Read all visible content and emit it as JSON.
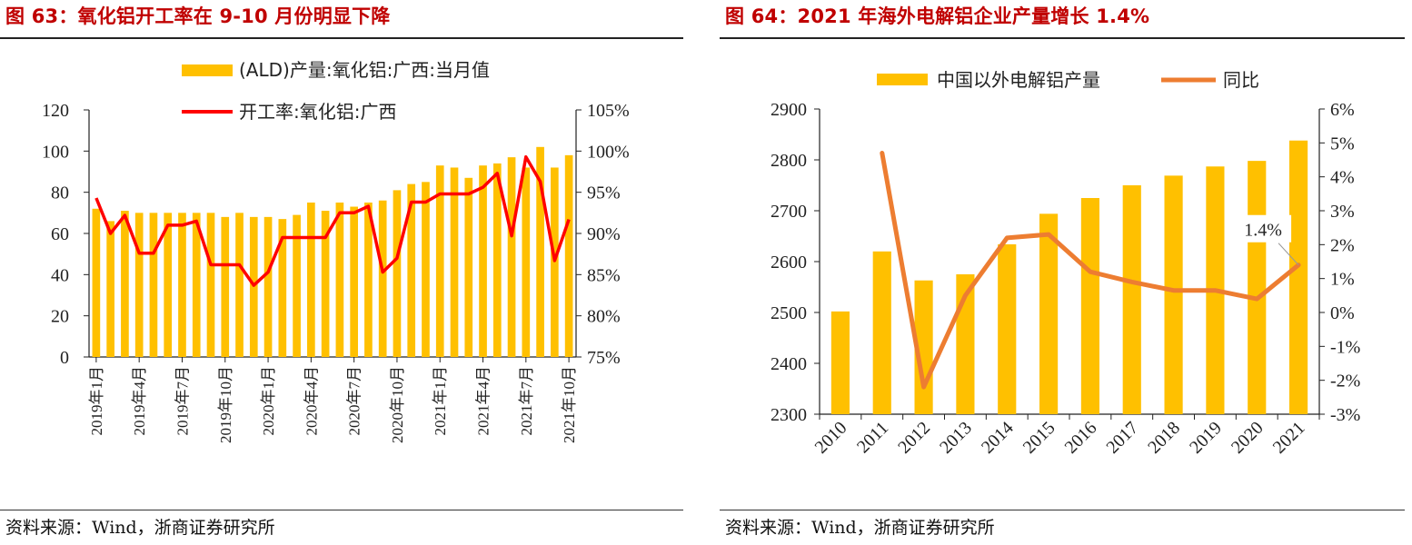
{
  "left": {
    "title": "图 63：氧化铝开工率在 9-10 月份明显下降",
    "source": "资料来源：Wind，浙商证券研究所",
    "chart_data": {
      "type": "bar+line",
      "categories": [
        "2019年1月",
        "2019年2月",
        "2019年3月",
        "2019年4月",
        "2019年5月",
        "2019年6月",
        "2019年7月",
        "2019年8月",
        "2019年9月",
        "2019年10月",
        "2019年11月",
        "2019年12月",
        "2020年1月",
        "2020年2月",
        "2020年3月",
        "2020年4月",
        "2020年5月",
        "2020年6月",
        "2020年7月",
        "2020年8月",
        "2020年9月",
        "2020年10月",
        "2020年11月",
        "2020年12月",
        "2021年1月",
        "2021年2月",
        "2021年3月",
        "2021年4月",
        "2021年5月",
        "2021年6月",
        "2021年7月",
        "2021年8月",
        "2021年9月",
        "2021年10月"
      ],
      "tick_labels": [
        "2019年1月",
        "2019年4月",
        "2019年7月",
        "2019年10月",
        "2020年1月",
        "2020年4月",
        "2020年7月",
        "2020年10月",
        "2021年1月",
        "2021年4月",
        "2021年7月",
        "2021年10月"
      ],
      "series": [
        {
          "name": "(ALD)产量:氧化铝:广西:当月值",
          "kind": "bar",
          "axis": "left",
          "color": "#ffc000",
          "values": [
            72,
            66,
            71,
            70,
            70,
            70,
            70,
            70,
            70,
            68,
            70,
            68,
            68,
            67,
            69,
            75,
            71,
            75,
            73,
            75,
            76,
            81,
            84,
            85,
            93,
            92,
            87,
            93,
            94,
            97,
            92,
            102,
            92,
            98
          ]
        },
        {
          "name": "开工率:氧化铝:广西",
          "kind": "line",
          "axis": "right",
          "color": "#ff0000",
          "values": [
            94.3,
            90.0,
            92.2,
            87.6,
            87.6,
            91.0,
            91.0,
            91.5,
            86.2,
            86.2,
            86.2,
            83.7,
            85.3,
            89.5,
            89.5,
            89.5,
            89.5,
            92.5,
            92.5,
            93.3,
            85.3,
            87.0,
            93.8,
            93.8,
            94.8,
            94.8,
            94.8,
            95.6,
            97.3,
            89.7,
            99.3,
            96.3,
            86.7,
            91.7
          ]
        }
      ],
      "y_left": {
        "min": 0,
        "max": 120,
        "ticks": [
          "0",
          "20",
          "40",
          "60",
          "80",
          "100",
          "120"
        ]
      },
      "y_right": {
        "min": 75,
        "max": 105,
        "ticks": [
          "75%",
          "80%",
          "85%",
          "90%",
          "95%",
          "100%",
          "105%"
        ]
      }
    }
  },
  "right": {
    "title": "图 64：2021 年海外电解铝企业产量增长 1.4%",
    "source": "资料来源：Wind，浙商证券研究所",
    "chart_data": {
      "type": "bar+line",
      "categories": [
        "2010",
        "2011",
        "2012",
        "2013",
        "2014",
        "2015",
        "2016",
        "2017",
        "2018",
        "2019",
        "2020",
        "2021"
      ],
      "series": [
        {
          "name": "中国以外电解铝产量",
          "kind": "bar",
          "axis": "left",
          "color": "#ffc000",
          "values": [
            2502,
            2620,
            2563,
            2575,
            2634,
            2694,
            2725,
            2750,
            2769,
            2787,
            2798,
            2838
          ]
        },
        {
          "name": "同比",
          "kind": "line",
          "axis": "right",
          "color": "#ed7d31",
          "values": [
            null,
            4.7,
            -2.2,
            0.5,
            2.2,
            2.3,
            1.2,
            0.9,
            0.65,
            0.65,
            0.4,
            1.4
          ]
        }
      ],
      "annotation": {
        "text": "1.4%",
        "category": "2021"
      },
      "y_left": {
        "min": 2300,
        "max": 2900,
        "ticks": [
          "2300",
          "2400",
          "2500",
          "2600",
          "2700",
          "2800",
          "2900"
        ]
      },
      "y_right": {
        "min": -3,
        "max": 6,
        "ticks": [
          "-3%",
          "-2%",
          "-1%",
          "0%",
          "1%",
          "2%",
          "3%",
          "4%",
          "5%",
          "6%"
        ]
      }
    }
  }
}
